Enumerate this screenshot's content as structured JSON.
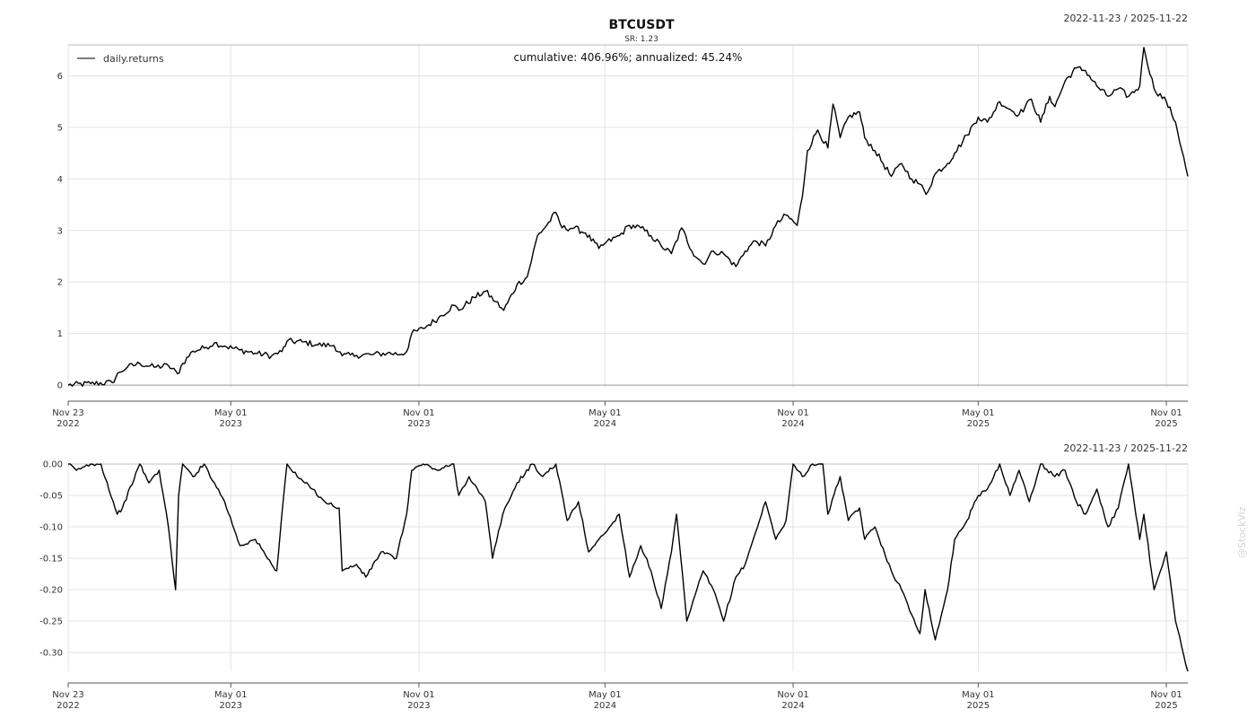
{
  "header": {
    "title": "BTCUSDT",
    "subtitle": "SR: 1.23",
    "annotation": "cumulative: 406.96%; annualized: 45.24%",
    "date_range_top": "2022-11-23 / 2025-11-22",
    "date_range_bottom": "2022-11-23 / 2025-11-22",
    "watermark": "@StockViz"
  },
  "chart_data": [
    {
      "type": "line",
      "name": "cumulative-returns",
      "legend": {
        "label": "daily.returns",
        "placement": "top-left"
      },
      "grid": true,
      "x_range": [
        "2022-11-23",
        "2025-11-22"
      ],
      "ylim": [
        -0.05,
        6.6
      ],
      "y_ticks": [
        0,
        1,
        2,
        3,
        4,
        5,
        6
      ],
      "y_tick_labels": [
        "0",
        "1",
        "2",
        "3",
        "4",
        "5",
        "6"
      ],
      "x_ticks": [
        {
          "date": "2022-11-23",
          "line1": "Nov 23",
          "line2": "2022"
        },
        {
          "date": "2023-05-01",
          "line1": "May 01",
          "line2": "2023"
        },
        {
          "date": "2023-11-01",
          "line1": "Nov 01",
          "line2": "2023"
        },
        {
          "date": "2024-05-01",
          "line1": "May 01",
          "line2": "2024"
        },
        {
          "date": "2024-11-01",
          "line1": "Nov 01",
          "line2": "2024"
        },
        {
          "date": "2025-05-01",
          "line1": "May 01",
          "line2": "2025"
        },
        {
          "date": "2025-11-01",
          "line1": "Nov 01",
          "line2": "2025"
        }
      ],
      "series": [
        {
          "name": "daily.returns",
          "color": "#000000",
          "x": [
            "2022-11-23",
            "2022-12-15",
            "2023-01-05",
            "2023-01-12",
            "2023-01-20",
            "2023-02-01",
            "2023-02-15",
            "2023-03-01",
            "2023-03-10",
            "2023-03-15",
            "2023-03-25",
            "2023-04-05",
            "2023-04-15",
            "2023-04-25",
            "2023-05-10",
            "2023-05-25",
            "2023-06-10",
            "2023-06-20",
            "2023-06-25",
            "2023-07-10",
            "2023-07-25",
            "2023-08-10",
            "2023-08-18",
            "2023-09-01",
            "2023-09-15",
            "2023-10-01",
            "2023-10-15",
            "2023-10-20",
            "2023-10-25",
            "2023-11-05",
            "2023-11-20",
            "2023-12-05",
            "2023-12-10",
            "2023-12-25",
            "2024-01-05",
            "2024-01-15",
            "2024-01-23",
            "2024-02-05",
            "2024-02-15",
            "2024-02-25",
            "2024-03-05",
            "2024-03-14",
            "2024-03-20",
            "2024-04-01",
            "2024-04-12",
            "2024-04-25",
            "2024-05-01",
            "2024-05-15",
            "2024-05-25",
            "2024-06-05",
            "2024-06-15",
            "2024-06-25",
            "2024-07-05",
            "2024-07-15",
            "2024-07-25",
            "2024-08-05",
            "2024-08-15",
            "2024-08-25",
            "2024-09-06",
            "2024-09-15",
            "2024-09-25",
            "2024-10-05",
            "2024-10-15",
            "2024-10-25",
            "2024-11-05",
            "2024-11-10",
            "2024-11-15",
            "2024-11-25",
            "2024-12-05",
            "2024-12-10",
            "2024-12-17",
            "2024-12-25",
            "2025-01-05",
            "2025-01-10",
            "2025-01-20",
            "2025-02-05",
            "2025-02-15",
            "2025-02-25",
            "2025-03-05",
            "2025-03-11",
            "2025-03-20",
            "2025-04-01",
            "2025-04-08",
            "2025-04-20",
            "2025-05-01",
            "2025-05-10",
            "2025-05-22",
            "2025-06-01",
            "2025-06-10",
            "2025-06-22",
            "2025-07-01",
            "2025-07-10",
            "2025-07-15",
            "2025-07-25",
            "2025-08-05",
            "2025-08-14",
            "2025-08-25",
            "2025-09-05",
            "2025-09-15",
            "2025-09-25",
            "2025-10-06",
            "2025-10-10",
            "2025-10-20",
            "2025-11-01",
            "2025-11-10",
            "2025-11-22"
          ],
          "values": [
            0,
            0.03,
            0.05,
            0.25,
            0.35,
            0.42,
            0.35,
            0.38,
            0.22,
            0.42,
            0.66,
            0.72,
            0.82,
            0.76,
            0.68,
            0.62,
            0.57,
            0.65,
            0.85,
            0.84,
            0.78,
            0.77,
            0.57,
            0.58,
            0.59,
            0.62,
            0.6,
            0.65,
            1.0,
            1.1,
            1.3,
            1.55,
            1.45,
            1.7,
            1.82,
            1.62,
            1.45,
            1.95,
            2.1,
            2.9,
            3.1,
            3.35,
            3.05,
            3.05,
            2.95,
            2.65,
            2.75,
            2.9,
            3.1,
            3.05,
            2.9,
            2.7,
            2.55,
            3.05,
            2.6,
            2.35,
            2.6,
            2.55,
            2.3,
            2.6,
            2.8,
            2.7,
            3.1,
            3.3,
            3.1,
            3.65,
            4.55,
            4.95,
            4.6,
            5.45,
            4.8,
            5.2,
            5.3,
            4.8,
            4.55,
            4.05,
            4.3,
            4.0,
            3.9,
            3.7,
            4.1,
            4.3,
            4.5,
            4.85,
            5.2,
            5.1,
            5.5,
            5.35,
            5.25,
            5.55,
            5.1,
            5.6,
            5.4,
            5.9,
            6.15,
            6.1,
            5.8,
            5.6,
            5.75,
            5.6,
            5.8,
            6.55,
            5.75,
            5.5,
            5.1,
            4.05
          ]
        }
      ]
    },
    {
      "type": "line",
      "name": "drawdown",
      "grid": true,
      "x_range": [
        "2022-11-23",
        "2025-11-22"
      ],
      "ylim": [
        -0.33,
        0.0
      ],
      "y_ticks": [
        0,
        -0.05,
        -0.1,
        -0.15,
        -0.2,
        -0.25,
        -0.3
      ],
      "y_tick_labels": [
        "0.00",
        "-0.05",
        "-0.10",
        "-0.15",
        "-0.20",
        "-0.25",
        "-0.30"
      ],
      "x_ticks": [
        {
          "date": "2022-11-23",
          "line1": "Nov 23",
          "line2": "2022"
        },
        {
          "date": "2023-05-01",
          "line1": "May 01",
          "line2": "2023"
        },
        {
          "date": "2023-11-01",
          "line1": "Nov 01",
          "line2": "2023"
        },
        {
          "date": "2024-05-01",
          "line1": "May 01",
          "line2": "2024"
        },
        {
          "date": "2024-11-01",
          "line1": "Nov 01",
          "line2": "2024"
        },
        {
          "date": "2025-05-01",
          "line1": "May 01",
          "line2": "2025"
        },
        {
          "date": "2025-11-01",
          "line1": "Nov 01",
          "line2": "2025"
        }
      ],
      "series": [
        {
          "name": "drawdown",
          "color": "#000000",
          "x": [
            "2022-11-23",
            "2022-12-01",
            "2022-12-15",
            "2022-12-25",
            "2023-01-10",
            "2023-01-15",
            "2023-02-01",
            "2023-02-10",
            "2023-02-20",
            "2023-03-01",
            "2023-03-08",
            "2023-03-11",
            "2023-03-15",
            "2023-03-25",
            "2023-04-05",
            "2023-04-15",
            "2023-04-25",
            "2023-05-10",
            "2023-05-25",
            "2023-06-10",
            "2023-06-15",
            "2023-06-20",
            "2023-06-25",
            "2023-07-05",
            "2023-07-20",
            "2023-08-01",
            "2023-08-15",
            "2023-08-18",
            "2023-09-01",
            "2023-09-10",
            "2023-09-25",
            "2023-10-10",
            "2023-10-20",
            "2023-10-25",
            "2023-11-05",
            "2023-11-20",
            "2023-12-05",
            "2023-12-10",
            "2023-12-20",
            "2024-01-05",
            "2024-01-12",
            "2024-01-22",
            "2024-02-05",
            "2024-02-20",
            "2024-03-01",
            "2024-03-14",
            "2024-03-25",
            "2024-04-05",
            "2024-04-15",
            "2024-04-25",
            "2024-05-01",
            "2024-05-15",
            "2024-05-25",
            "2024-06-05",
            "2024-06-15",
            "2024-06-25",
            "2024-07-05",
            "2024-07-10",
            "2024-07-20",
            "2024-08-05",
            "2024-08-15",
            "2024-08-25",
            "2024-09-06",
            "2024-09-15",
            "2024-09-25",
            "2024-10-05",
            "2024-10-15",
            "2024-10-25",
            "2024-11-01",
            "2024-11-10",
            "2024-11-20",
            "2024-11-30",
            "2024-12-05",
            "2024-12-17",
            "2024-12-25",
            "2025-01-05",
            "2025-01-10",
            "2025-01-20",
            "2025-02-05",
            "2025-02-15",
            "2025-02-25",
            "2025-03-05",
            "2025-03-10",
            "2025-03-20",
            "2025-04-01",
            "2025-04-08",
            "2025-04-20",
            "2025-05-01",
            "2025-05-10",
            "2025-05-22",
            "2025-06-01",
            "2025-06-10",
            "2025-06-20",
            "2025-07-01",
            "2025-07-15",
            "2025-07-25",
            "2025-08-05",
            "2025-08-14",
            "2025-08-25",
            "2025-09-05",
            "2025-09-15",
            "2025-09-25",
            "2025-10-06",
            "2025-10-10",
            "2025-10-20",
            "2025-11-01",
            "2025-11-10",
            "2025-11-22"
          ],
          "values": [
            0,
            -0.01,
            0,
            0,
            -0.08,
            -0.07,
            0,
            -0.03,
            -0.01,
            -0.1,
            -0.2,
            -0.05,
            0,
            -0.02,
            0,
            -0.03,
            -0.06,
            -0.13,
            -0.12,
            -0.16,
            -0.17,
            -0.08,
            0,
            -0.02,
            -0.04,
            -0.06,
            -0.07,
            -0.17,
            -0.16,
            -0.18,
            -0.14,
            -0.15,
            -0.08,
            -0.01,
            0,
            -0.01,
            0,
            -0.05,
            -0.02,
            -0.06,
            -0.15,
            -0.08,
            -0.03,
            0,
            -0.02,
            0,
            -0.09,
            -0.06,
            -0.14,
            -0.12,
            -0.11,
            -0.08,
            -0.18,
            -0.13,
            -0.17,
            -0.23,
            -0.14,
            -0.08,
            -0.25,
            -0.17,
            -0.2,
            -0.25,
            -0.18,
            -0.16,
            -0.11,
            -0.06,
            -0.12,
            -0.09,
            0,
            -0.02,
            0,
            0,
            -0.08,
            -0.02,
            -0.09,
            -0.07,
            -0.12,
            -0.1,
            -0.17,
            -0.2,
            -0.24,
            -0.27,
            -0.2,
            -0.28,
            -0.2,
            -0.12,
            -0.09,
            -0.05,
            -0.04,
            0,
            -0.05,
            -0.01,
            -0.06,
            0,
            -0.02,
            -0.01,
            -0.06,
            -0.08,
            -0.04,
            -0.1,
            -0.07,
            0,
            -0.12,
            -0.08,
            -0.2,
            -0.14,
            -0.25,
            -0.33
          ]
        }
      ]
    }
  ]
}
